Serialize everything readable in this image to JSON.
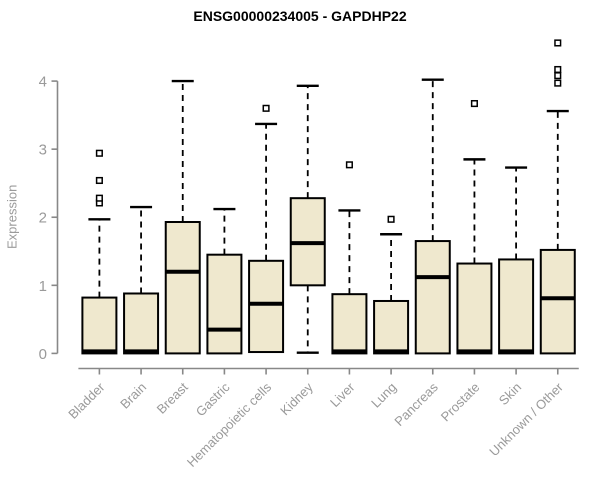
{
  "title": "ENSG00000234005 - GAPDHP22",
  "style": {
    "background": "#ffffff",
    "box_fill": "#efe8ce",
    "box_stroke": "#000000",
    "axis_color": "#888888",
    "tick_label_color": "#9a9a9a",
    "title_color": "#000000",
    "outlier_fill": "#ffffff"
  },
  "chart_data": {
    "type": "boxplot",
    "title": "ENSG00000234005 - GAPDHP22",
    "xlabel": "",
    "ylabel": "Expression",
    "ylim": [
      0,
      4
    ],
    "yticks": [
      "0",
      "1",
      "2",
      "3",
      "4"
    ],
    "grid": "off",
    "legend": "none",
    "categories": [
      "Bladder",
      "Brain",
      "Breast",
      "Gastric",
      "Hematopoietic cells",
      "Kidney",
      "Liver",
      "Lung",
      "Pancreas",
      "Prostate",
      "Skin",
      "Unknown / Other"
    ],
    "series": [
      {
        "name": "Bladder",
        "whisker_low": 0,
        "q1": 0,
        "median": 0.03,
        "q3": 0.82,
        "whisker_high": 1.97,
        "outliers": [
          2.21,
          2.28,
          2.54,
          2.94
        ]
      },
      {
        "name": "Brain",
        "whisker_low": 0,
        "q1": 0,
        "median": 0.03,
        "q3": 0.88,
        "whisker_high": 2.15,
        "outliers": []
      },
      {
        "name": "Breast",
        "whisker_low": 0,
        "q1": 0,
        "median": 1.2,
        "q3": 1.93,
        "whisker_high": 4.0,
        "outliers": []
      },
      {
        "name": "Gastric",
        "whisker_low": 0,
        "q1": 0,
        "median": 0.35,
        "q3": 1.45,
        "whisker_high": 2.12,
        "outliers": []
      },
      {
        "name": "Hematopoietic cells",
        "whisker_low": 0.02,
        "q1": 0.02,
        "median": 0.73,
        "q3": 1.36,
        "whisker_high": 3.37,
        "outliers": [
          3.6
        ]
      },
      {
        "name": "Kidney",
        "whisker_low": 0.01,
        "q1": 1.0,
        "median": 1.62,
        "q3": 2.28,
        "whisker_high": 3.93,
        "outliers": []
      },
      {
        "name": "Liver",
        "whisker_low": 0,
        "q1": 0,
        "median": 0.03,
        "q3": 0.87,
        "whisker_high": 2.1,
        "outliers": [
          2.77
        ]
      },
      {
        "name": "Lung",
        "whisker_low": 0,
        "q1": 0,
        "median": 0.03,
        "q3": 0.77,
        "whisker_high": 1.75,
        "outliers": [
          1.97
        ]
      },
      {
        "name": "Pancreas",
        "whisker_low": 0,
        "q1": 0,
        "median": 1.12,
        "q3": 1.65,
        "whisker_high": 4.02,
        "outliers": []
      },
      {
        "name": "Prostate",
        "whisker_low": 0,
        "q1": 0,
        "median": 0.03,
        "q3": 1.32,
        "whisker_high": 2.85,
        "outliers": [
          3.67
        ]
      },
      {
        "name": "Skin",
        "whisker_low": 0,
        "q1": 0,
        "median": 0.03,
        "q3": 1.38,
        "whisker_high": 2.73,
        "outliers": []
      },
      {
        "name": "Unknown / Other",
        "whisker_low": 0,
        "q1": 0,
        "median": 0.81,
        "q3": 1.52,
        "whisker_high": 3.56,
        "outliers": [
          3.97,
          4.08,
          4.17,
          4.56
        ]
      }
    ]
  }
}
